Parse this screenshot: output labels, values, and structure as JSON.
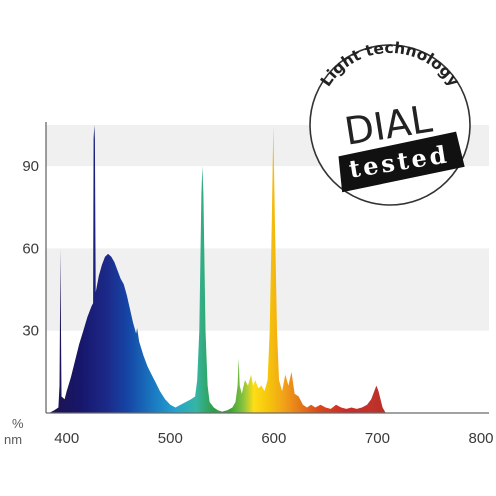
{
  "chart_data": {
    "type": "area",
    "title": "",
    "xlabel": "",
    "ylabel": "",
    "y_unit_label": "%",
    "x_unit_label": "nm",
    "xlim": [
      380,
      800
    ],
    "ylim": [
      0,
      105
    ],
    "x_ticks": [
      400,
      500,
      600,
      700,
      800
    ],
    "y_ticks": [
      30,
      60,
      90
    ],
    "grid": "alternating horizontal bands",
    "series": [
      {
        "points": [
          [
            383,
            0
          ],
          [
            388,
            1
          ],
          [
            392,
            2
          ],
          [
            393,
            10
          ],
          [
            393.5,
            35
          ],
          [
            394,
            60
          ],
          [
            394.5,
            30
          ],
          [
            395,
            6
          ],
          [
            398,
            5
          ],
          [
            400,
            8
          ],
          [
            404,
            13
          ],
          [
            408,
            19
          ],
          [
            412,
            25
          ],
          [
            416,
            30
          ],
          [
            420,
            35
          ],
          [
            424,
            39
          ],
          [
            425.5,
            40
          ],
          [
            426,
            100
          ],
          [
            426.6,
            105
          ],
          [
            427.2,
            100
          ],
          [
            428,
            44
          ],
          [
            431,
            50
          ],
          [
            434,
            54
          ],
          [
            437,
            57
          ],
          [
            440,
            58
          ],
          [
            443,
            57
          ],
          [
            446,
            55
          ],
          [
            449,
            52
          ],
          [
            452,
            49
          ],
          [
            455,
            47
          ],
          [
            458,
            43
          ],
          [
            461,
            38
          ],
          [
            464,
            33
          ],
          [
            467,
            29
          ],
          [
            468,
            31
          ],
          [
            470,
            26
          ],
          [
            474,
            21
          ],
          [
            478,
            17
          ],
          [
            482,
            14
          ],
          [
            486,
            11
          ],
          [
            490,
            8
          ],
          [
            495,
            5
          ],
          [
            500,
            3
          ],
          [
            505,
            2
          ],
          [
            510,
            3
          ],
          [
            515,
            4
          ],
          [
            520,
            5
          ],
          [
            524,
            6
          ],
          [
            526,
            12
          ],
          [
            528,
            30
          ],
          [
            530,
            80
          ],
          [
            531,
            90
          ],
          [
            532,
            80
          ],
          [
            534,
            30
          ],
          [
            536,
            10
          ],
          [
            538,
            4
          ],
          [
            542,
            2
          ],
          [
            546,
            1
          ],
          [
            550,
            0.5
          ],
          [
            555,
            1
          ],
          [
            560,
            2
          ],
          [
            563,
            4
          ],
          [
            565,
            10
          ],
          [
            566,
            20
          ],
          [
            567,
            10
          ],
          [
            569,
            7
          ],
          [
            572,
            12
          ],
          [
            575,
            10
          ],
          [
            578,
            14
          ],
          [
            580,
            10
          ],
          [
            582,
            12
          ],
          [
            585,
            9
          ],
          [
            588,
            10
          ],
          [
            591,
            8
          ],
          [
            594,
            12
          ],
          [
            596,
            30
          ],
          [
            598,
            70
          ],
          [
            599.5,
            105
          ],
          [
            601,
            70
          ],
          [
            603,
            30
          ],
          [
            605,
            12
          ],
          [
            608,
            8
          ],
          [
            611,
            14
          ],
          [
            614,
            10
          ],
          [
            617,
            15
          ],
          [
            620,
            7
          ],
          [
            624,
            6
          ],
          [
            628,
            3
          ],
          [
            632,
            2
          ],
          [
            636,
            3
          ],
          [
            640,
            2
          ],
          [
            645,
            3
          ],
          [
            650,
            2
          ],
          [
            655,
            1.5
          ],
          [
            660,
            3
          ],
          [
            665,
            2
          ],
          [
            670,
            1.5
          ],
          [
            675,
            2
          ],
          [
            680,
            1.5
          ],
          [
            685,
            2
          ],
          [
            690,
            3
          ],
          [
            694,
            5
          ],
          [
            697,
            8
          ],
          [
            699,
            10
          ],
          [
            701,
            8
          ],
          [
            703,
            5
          ],
          [
            705,
            2
          ],
          [
            708,
            0
          ]
        ]
      }
    ]
  },
  "seal": {
    "ring_text": "Light technology",
    "brand": "DIAL",
    "stamp": "tested"
  }
}
